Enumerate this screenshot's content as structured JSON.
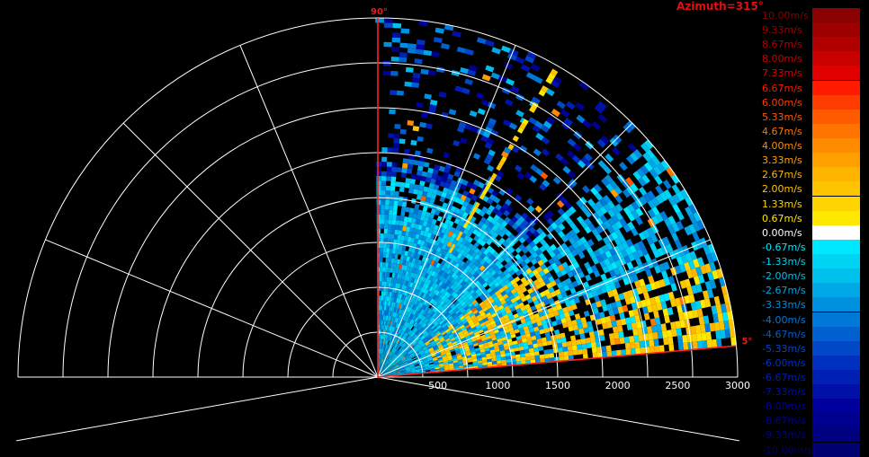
{
  "title": "Azimuth=315°",
  "chart_data": {
    "type": "heatmap",
    "projection": "polar-sector",
    "r_max": 3000,
    "r_ticks": [
      500,
      1000,
      1500,
      2000,
      2500,
      3000
    ],
    "sector_start_label": "5°",
    "sector_end_label": "90°",
    "sector_start_deg": 5,
    "sector_end_deg": 90,
    "colorbar": {
      "unit": "m/s",
      "entries": [
        {
          "label": "10.00m/s",
          "value": 10.0,
          "color": "#8b0000"
        },
        {
          "label": "9.33m/s",
          "value": 9.33,
          "color": "#9e0000"
        },
        {
          "label": "8.67m/s",
          "value": 8.67,
          "color": "#b00000"
        },
        {
          "label": "8.00m/s",
          "value": 8.0,
          "color": "#c80000"
        },
        {
          "label": "7.33m/s",
          "value": 7.33,
          "color": "#e00000"
        },
        {
          "label": "6.67m/s",
          "value": 6.67,
          "color": "#ff1a00"
        },
        {
          "label": "6.00m/s",
          "value": 6.0,
          "color": "#ff3c00"
        },
        {
          "label": "5.33m/s",
          "value": 5.33,
          "color": "#ff5a00"
        },
        {
          "label": "4.67m/s",
          "value": 4.67,
          "color": "#ff7400"
        },
        {
          "label": "4.00m/s",
          "value": 4.0,
          "color": "#ff8c00"
        },
        {
          "label": "3.33m/s",
          "value": 3.33,
          "color": "#ffa000"
        },
        {
          "label": "2.67m/s",
          "value": 2.67,
          "color": "#ffb400"
        },
        {
          "label": "2.00m/s",
          "value": 2.0,
          "color": "#ffc400"
        },
        {
          "label": "1.33m/s",
          "value": 1.33,
          "color": "#ffd400"
        },
        {
          "label": "0.67m/s",
          "value": 0.67,
          "color": "#ffe800"
        },
        {
          "label": "0.00m/s",
          "value": 0.0,
          "color": "#ffffff"
        },
        {
          "label": "-0.67m/s",
          "value": -0.67,
          "color": "#00e8ff"
        },
        {
          "label": "-1.33m/s",
          "value": -1.33,
          "color": "#00d4f4"
        },
        {
          "label": "-2.00m/s",
          "value": -2.0,
          "color": "#00c0ee"
        },
        {
          "label": "-2.67m/s",
          "value": -2.67,
          "color": "#00a8e8"
        },
        {
          "label": "-3.33m/s",
          "value": -3.33,
          "color": "#0090e0"
        },
        {
          "label": "-4.00m/s",
          "value": -4.0,
          "color": "#0078d8"
        },
        {
          "label": "-4.67m/s",
          "value": -4.67,
          "color": "#0060d0"
        },
        {
          "label": "-5.33m/s",
          "value": -5.33,
          "color": "#0048c8"
        },
        {
          "label": "-6.00m/s",
          "value": -6.0,
          "color": "#0030c0"
        },
        {
          "label": "-6.67m/s",
          "value": -6.67,
          "color": "#0020b4"
        },
        {
          "label": "-7.33m/s",
          "value": -7.33,
          "color": "#0010a8"
        },
        {
          "label": "-8.00m/s",
          "value": -8.0,
          "color": "#00009c"
        },
        {
          "label": "-8.67m/s",
          "value": -8.67,
          "color": "#00008e"
        },
        {
          "label": "-9.33m/s",
          "value": -9.33,
          "color": "#000080"
        },
        {
          "label": "-10.00m/s",
          "value": -10.0,
          "color": "#000070"
        }
      ]
    }
  }
}
